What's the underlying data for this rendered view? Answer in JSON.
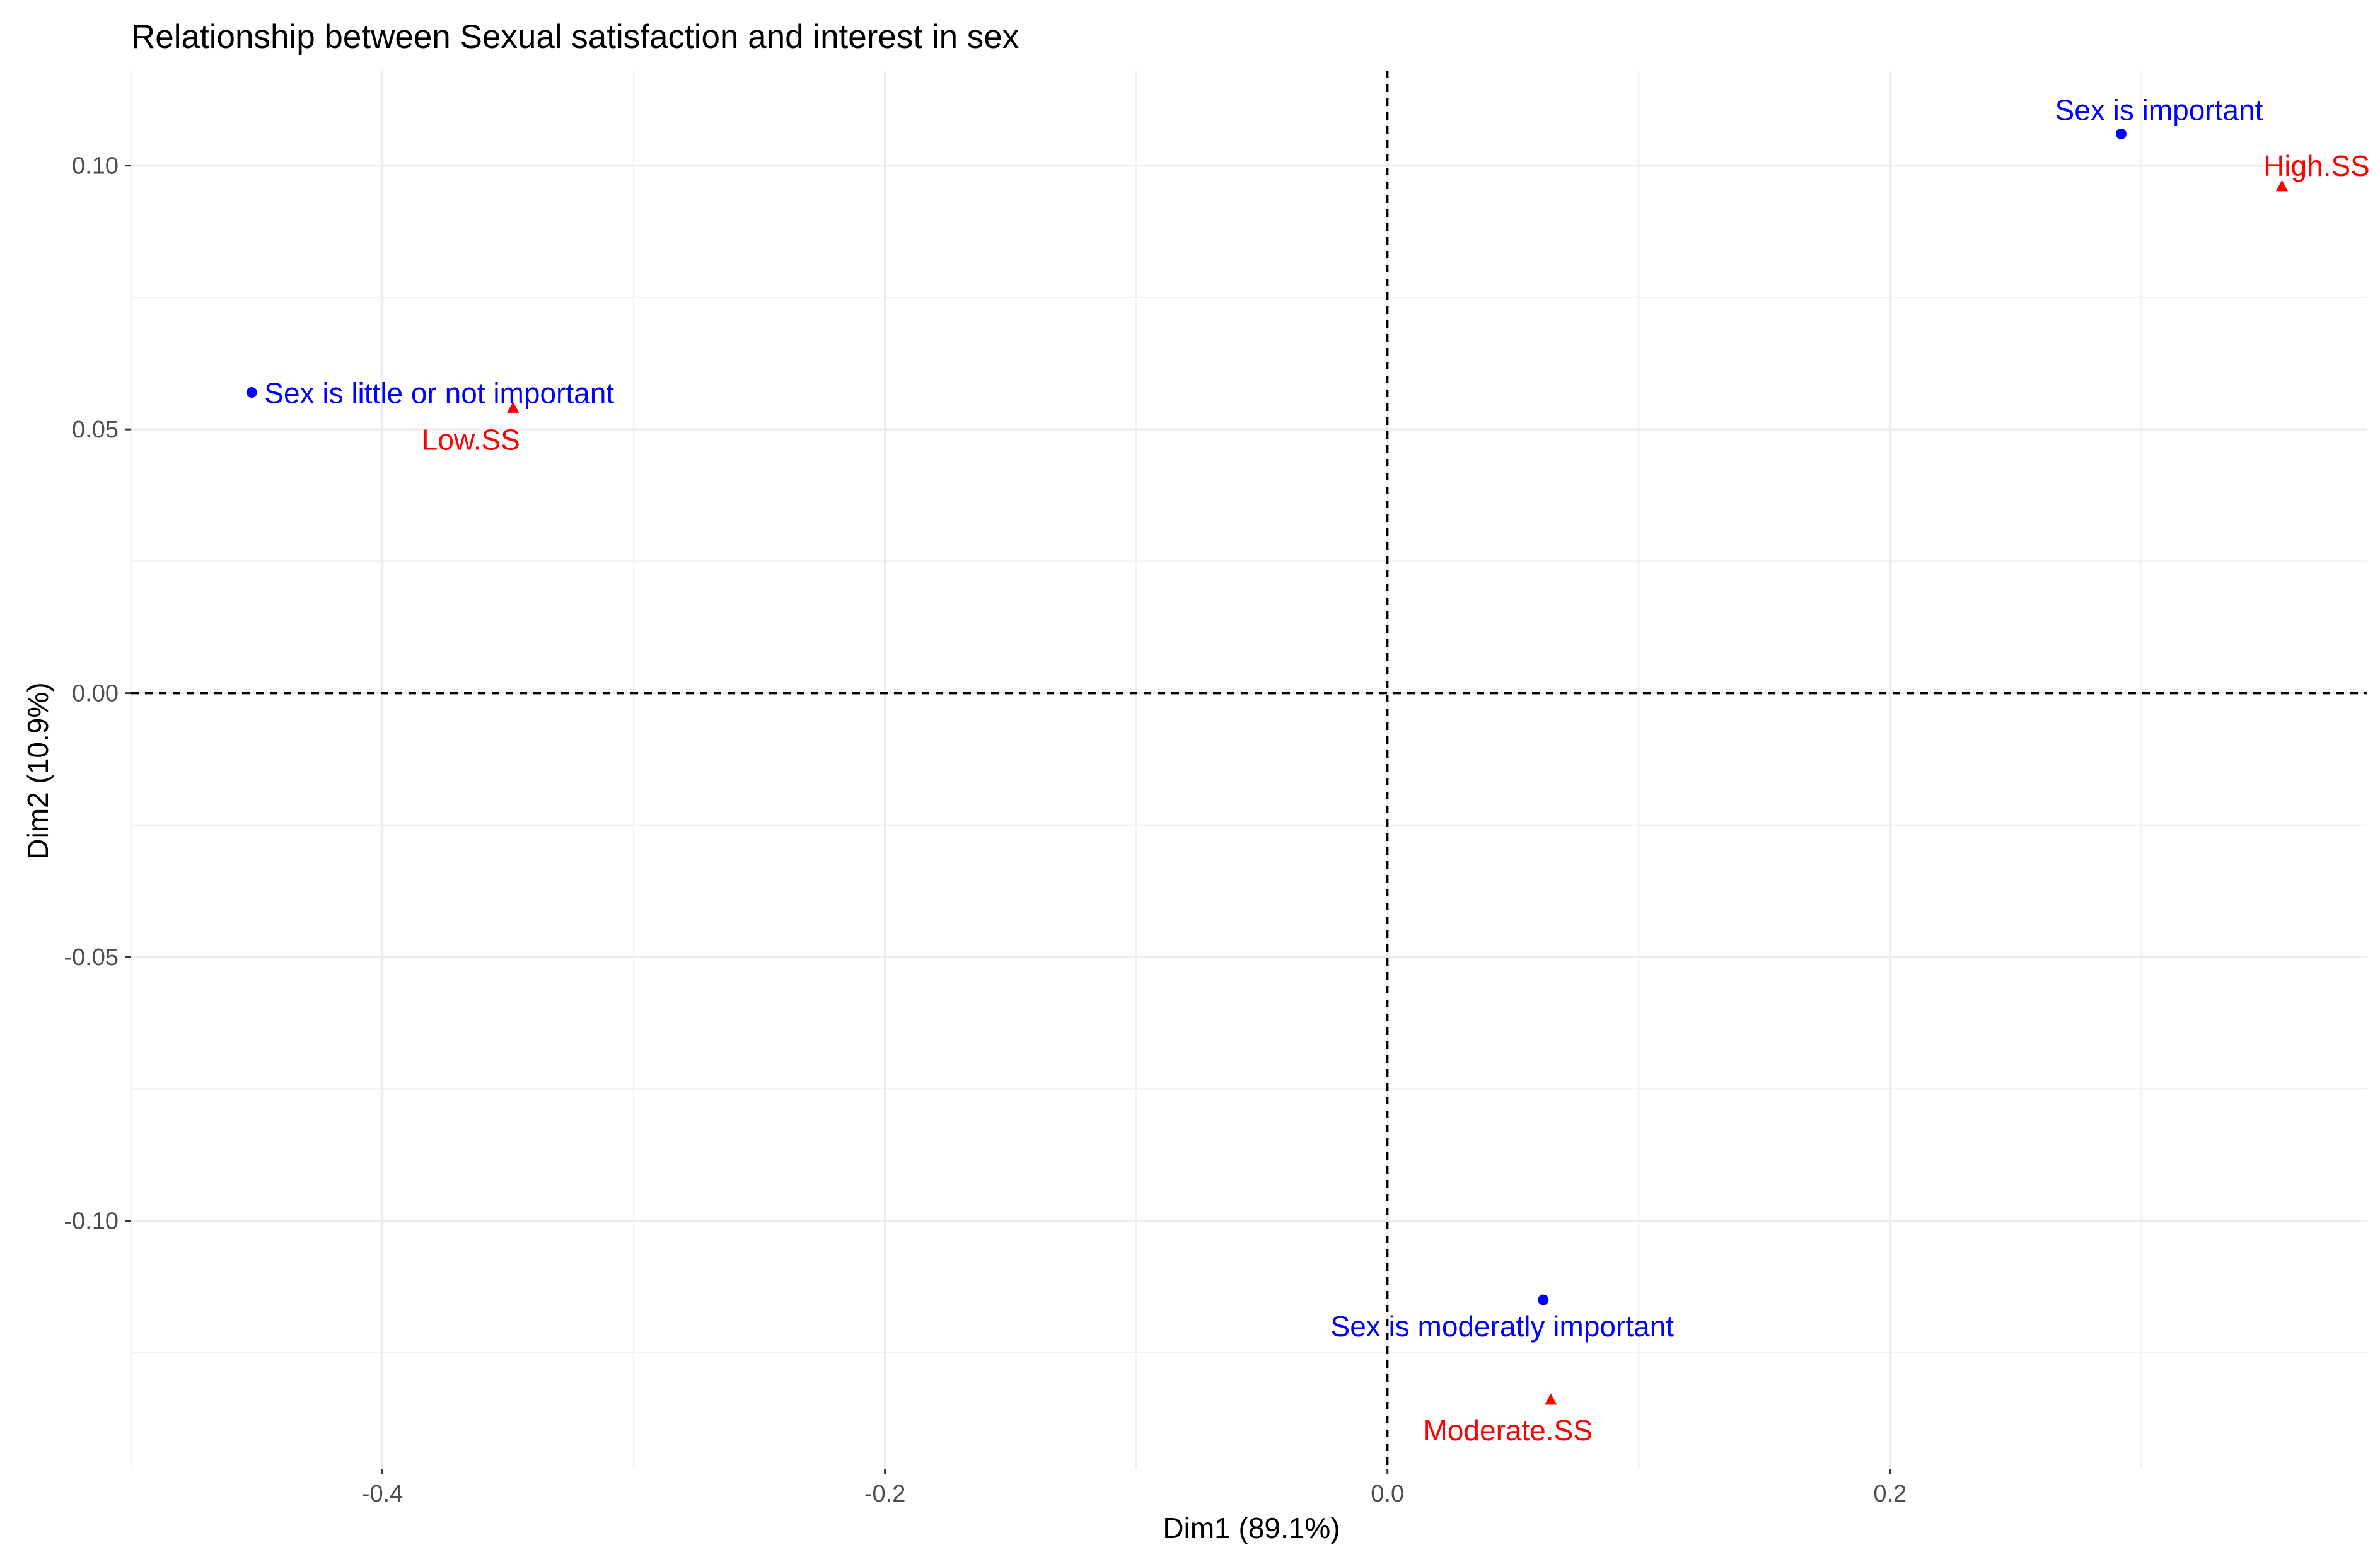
{
  "chart_data": {
    "type": "scatter",
    "title": "Relationship between Sexual satisfaction and interest in sex",
    "xlabel": "Dim1 (89.1%)",
    "ylabel": "Dim2 (10.9%)",
    "xlim": [
      -0.5,
      0.39
    ],
    "ylim": [
      -0.147,
      0.118
    ],
    "x_ticks": [
      {
        "value": -0.4,
        "label": "-0.4"
      },
      {
        "value": -0.2,
        "label": "-0.2"
      },
      {
        "value": 0.0,
        "label": "0.0"
      },
      {
        "value": 0.2,
        "label": "0.2"
      }
    ],
    "y_ticks": [
      {
        "value": 0.1,
        "label": "0.10"
      },
      {
        "value": 0.05,
        "label": "0.05"
      },
      {
        "value": 0.0,
        "label": "0.00"
      },
      {
        "value": -0.05,
        "label": "-0.05"
      },
      {
        "value": -0.1,
        "label": "-0.10"
      }
    ],
    "grid": true,
    "reference_lines": {
      "x": 0,
      "y": 0
    },
    "series": [
      {
        "color": "#0000ff",
        "marker": "circle",
        "points": [
          {
            "label": "Sex is important",
            "x": 0.292,
            "y": 0.106
          },
          {
            "label": "Sex is little or not important",
            "x": -0.452,
            "y": 0.057
          },
          {
            "label": "Sex is moderatly important",
            "x": 0.062,
            "y": -0.115
          }
        ]
      },
      {
        "color": "#ff0000",
        "marker": "triangle",
        "points": [
          {
            "label": "High.SS",
            "x": 0.356,
            "y": 0.096
          },
          {
            "label": "Low.SS",
            "x": -0.348,
            "y": 0.054
          },
          {
            "label": "Moderate.SS",
            "x": 0.065,
            "y": -0.134
          }
        ]
      }
    ]
  }
}
